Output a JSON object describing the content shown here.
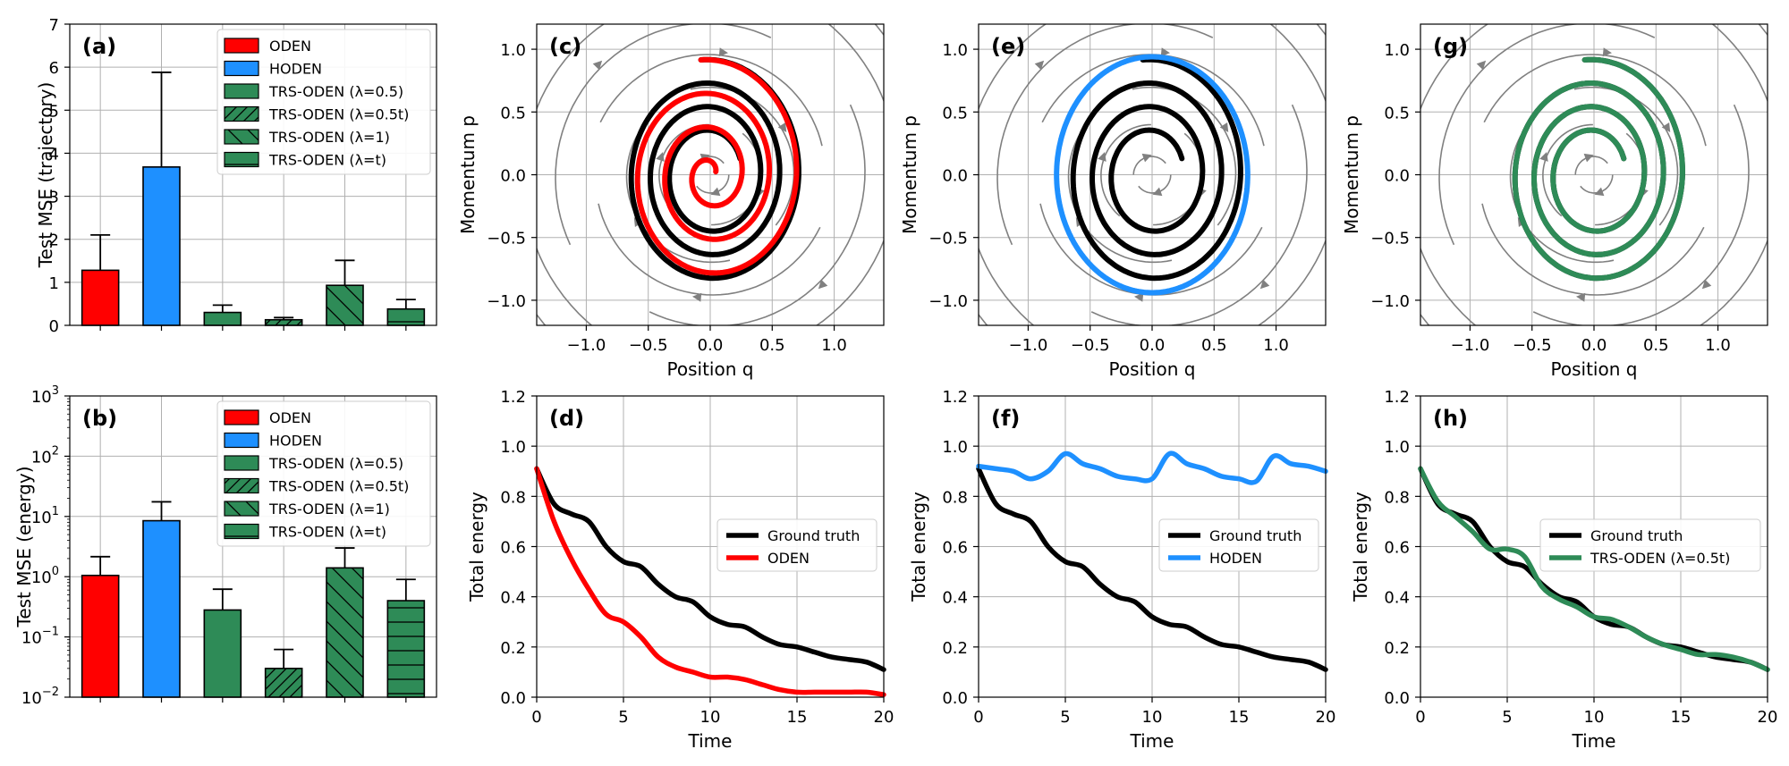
{
  "chart_data": [
    {
      "id": "a",
      "type": "bar",
      "panel_label": "(a)",
      "ylabel": "Test MSE (trajectory)",
      "yscale": "linear",
      "ylim": [
        0,
        7
      ],
      "yticks": [
        0,
        1,
        2,
        3,
        4,
        5,
        6,
        7
      ],
      "ytick_labels": [
        "0",
        "1",
        "2",
        "3",
        "4",
        "5",
        "6",
        "7"
      ],
      "categories": [
        "ODEN",
        "HODEN",
        "TRS-ODEN (λ=0.5)",
        "TRS-ODEN (λ=0.5t)",
        "TRS-ODEN (λ=1)",
        "TRS-ODEN (λ=t)"
      ],
      "values": [
        1.28,
        3.68,
        0.3,
        0.13,
        0.93,
        0.38
      ],
      "errors": [
        0.82,
        2.2,
        0.17,
        0.05,
        0.58,
        0.22
      ],
      "legend_position": "top-right"
    },
    {
      "id": "b",
      "type": "bar",
      "panel_label": "(b)",
      "ylabel": "Test MSE (energy)",
      "yscale": "log",
      "ylim": [
        0.01,
        1000
      ],
      "ytick_labels": [
        "10",
        "10",
        "10",
        "10",
        "10",
        "10"
      ],
      "ytick_exponents": [
        "−2",
        "−1",
        "0",
        "1",
        "2",
        "3"
      ],
      "categories": [
        "ODEN",
        "HODEN",
        "TRS-ODEN (λ=0.5)",
        "TRS-ODEN (λ=0.5t)",
        "TRS-ODEN (λ=1)",
        "TRS-ODEN (λ=t)"
      ],
      "values": [
        1.05,
        8.5,
        0.28,
        0.03,
        1.4,
        0.4
      ],
      "errors": [
        1.1,
        9.0,
        0.34,
        0.032,
        1.6,
        0.5
      ],
      "legend_position": "top-right"
    },
    {
      "id": "c",
      "type": "line",
      "panel_label": "(c)",
      "xlabel": "Position q",
      "ylabel": "Momentum p",
      "xlim": [
        -1.4,
        1.4
      ],
      "ylim": [
        -1.2,
        1.2
      ],
      "xtick_labels": [
        "−1.0",
        "−0.5",
        "0.0",
        "0.5",
        "1.0"
      ],
      "ytick_labels": [
        "−1.0",
        "−0.5",
        "0.0",
        "0.5",
        "1.0"
      ],
      "series": [
        {
          "name": "Ground truth",
          "color": "#000000",
          "r_start": 0.92,
          "r_end": 0.32,
          "turns": 3.2
        },
        {
          "name": "ODEN",
          "color": "#ff0000",
          "r_start": 0.92,
          "r_end": 0.06,
          "turns": 3.2
        }
      ]
    },
    {
      "id": "e",
      "type": "line",
      "panel_label": "(e)",
      "xlabel": "Position q",
      "ylabel": "Momentum p",
      "xlim": [
        -1.4,
        1.4
      ],
      "ylim": [
        -1.2,
        1.2
      ],
      "xtick_labels": [
        "−1.0",
        "−0.5",
        "0.0",
        "0.5",
        "1.0"
      ],
      "ytick_labels": [
        "−1.0",
        "−0.5",
        "0.0",
        "0.5",
        "1.0"
      ],
      "series": [
        {
          "name": "Ground truth",
          "color": "#000000",
          "r_start": 0.92,
          "r_end": 0.32,
          "turns": 3.2
        },
        {
          "name": "HODEN",
          "color": "#1e90ff",
          "r_start": 0.94,
          "r_end": 0.94,
          "turns": 1.0
        }
      ]
    },
    {
      "id": "g",
      "type": "line",
      "panel_label": "(g)",
      "xlabel": "Position q",
      "ylabel": "Momentum p",
      "xlim": [
        -1.4,
        1.4
      ],
      "ylim": [
        -1.2,
        1.2
      ],
      "xtick_labels": [
        "−1.0",
        "−0.5",
        "0.0",
        "0.5",
        "1.0"
      ],
      "ytick_labels": [
        "−1.0",
        "−0.5",
        "0.0",
        "0.5",
        "1.0"
      ],
      "series": [
        {
          "name": "Ground truth",
          "color": "#000000",
          "r_start": 0.92,
          "r_end": 0.32,
          "turns": 3.2
        },
        {
          "name": "TRS-ODEN (λ=0.5t)",
          "color": "#2e8b57",
          "r_start": 0.92,
          "r_end": 0.32,
          "turns": 3.2
        }
      ]
    },
    {
      "id": "d",
      "type": "line",
      "panel_label": "(d)",
      "xlabel": "Time",
      "ylabel": "Total energy",
      "xlim": [
        0,
        20
      ],
      "ylim": [
        0,
        1.2
      ],
      "xtick_labels": [
        "0",
        "5",
        "10",
        "15",
        "20"
      ],
      "ytick_labels": [
        "0.0",
        "0.2",
        "0.4",
        "0.6",
        "0.8",
        "1.0",
        "1.2"
      ],
      "legend_position": "center-right",
      "series": [
        {
          "name": "Ground truth",
          "color": "#000000",
          "x": [
            0,
            1,
            2,
            3,
            4,
            5,
            6,
            7,
            8,
            9,
            10,
            11,
            12,
            13,
            14,
            15,
            16,
            17,
            18,
            19,
            20
          ],
          "y": [
            0.91,
            0.77,
            0.73,
            0.7,
            0.6,
            0.54,
            0.52,
            0.45,
            0.4,
            0.38,
            0.32,
            0.29,
            0.28,
            0.24,
            0.21,
            0.2,
            0.18,
            0.16,
            0.15,
            0.14,
            0.11
          ]
        },
        {
          "name": "ODEN",
          "color": "#ff0000",
          "x": [
            0,
            1,
            2,
            3,
            4,
            5,
            6,
            7,
            8,
            9,
            10,
            11,
            12,
            13,
            14,
            15,
            16,
            17,
            18,
            19,
            20
          ],
          "y": [
            0.91,
            0.7,
            0.55,
            0.43,
            0.33,
            0.3,
            0.24,
            0.16,
            0.12,
            0.1,
            0.08,
            0.08,
            0.07,
            0.05,
            0.03,
            0.02,
            0.02,
            0.02,
            0.02,
            0.02,
            0.01
          ]
        }
      ]
    },
    {
      "id": "f",
      "type": "line",
      "panel_label": "(f)",
      "xlabel": "Time",
      "ylabel": "Total energy",
      "xlim": [
        0,
        20
      ],
      "ylim": [
        0,
        1.2
      ],
      "xtick_labels": [
        "0",
        "5",
        "10",
        "15",
        "20"
      ],
      "ytick_labels": [
        "0.0",
        "0.2",
        "0.4",
        "0.6",
        "0.8",
        "1.0",
        "1.2"
      ],
      "legend_position": "center-right",
      "series": [
        {
          "name": "Ground truth",
          "color": "#000000",
          "x": [
            0,
            1,
            2,
            3,
            4,
            5,
            6,
            7,
            8,
            9,
            10,
            11,
            12,
            13,
            14,
            15,
            16,
            17,
            18,
            19,
            20
          ],
          "y": [
            0.91,
            0.77,
            0.73,
            0.7,
            0.6,
            0.54,
            0.52,
            0.45,
            0.4,
            0.38,
            0.32,
            0.29,
            0.28,
            0.24,
            0.21,
            0.2,
            0.18,
            0.16,
            0.15,
            0.14,
            0.11
          ]
        },
        {
          "name": "HODEN",
          "color": "#1e90ff",
          "x": [
            0,
            1,
            2,
            3,
            4,
            5,
            6,
            7,
            8,
            9,
            10,
            11,
            12,
            13,
            14,
            15,
            16,
            17,
            18,
            19,
            20
          ],
          "y": [
            0.92,
            0.91,
            0.9,
            0.87,
            0.9,
            0.97,
            0.93,
            0.91,
            0.88,
            0.87,
            0.87,
            0.97,
            0.93,
            0.91,
            0.88,
            0.87,
            0.86,
            0.96,
            0.93,
            0.92,
            0.9
          ]
        }
      ]
    },
    {
      "id": "h",
      "type": "line",
      "panel_label": "(h)",
      "xlabel": "Time",
      "ylabel": "Total energy",
      "xlim": [
        0,
        20
      ],
      "ylim": [
        0,
        1.2
      ],
      "xtick_labels": [
        "0",
        "5",
        "10",
        "15",
        "20"
      ],
      "ytick_labels": [
        "0.0",
        "0.2",
        "0.4",
        "0.6",
        "0.8",
        "1.0",
        "1.2"
      ],
      "legend_position": "top-right",
      "series": [
        {
          "name": "Ground truth",
          "color": "#000000",
          "x": [
            0,
            1,
            2,
            3,
            4,
            5,
            6,
            7,
            8,
            9,
            10,
            11,
            12,
            13,
            14,
            15,
            16,
            17,
            18,
            19,
            20
          ],
          "y": [
            0.91,
            0.77,
            0.73,
            0.7,
            0.6,
            0.54,
            0.52,
            0.45,
            0.4,
            0.38,
            0.32,
            0.29,
            0.28,
            0.24,
            0.21,
            0.2,
            0.18,
            0.16,
            0.15,
            0.14,
            0.11
          ]
        },
        {
          "name": "TRS-ODEN (λ=0.5t)",
          "color": "#2e8b57",
          "x": [
            0,
            1,
            2,
            3,
            4,
            5,
            6,
            7,
            8,
            9,
            10,
            11,
            12,
            13,
            14,
            15,
            16,
            17,
            18,
            19,
            20
          ],
          "y": [
            0.91,
            0.78,
            0.72,
            0.66,
            0.59,
            0.59,
            0.56,
            0.44,
            0.39,
            0.36,
            0.32,
            0.31,
            0.28,
            0.24,
            0.21,
            0.19,
            0.17,
            0.17,
            0.16,
            0.14,
            0.11
          ]
        }
      ]
    }
  ],
  "legend_bars": {
    "items": [
      "ODEN",
      "HODEN",
      "TRS-ODEN (λ=0.5)",
      "TRS-ODEN (λ=0.5t)",
      "TRS-ODEN (λ=1)",
      "TRS-ODEN (λ=t)"
    ],
    "colors": [
      "#ff0000",
      "#1e90ff",
      "#2e8b57",
      "#2e8b57",
      "#2e8b57",
      "#2e8b57"
    ],
    "hatches": [
      "none",
      "none",
      "none",
      "slash",
      "backslash",
      "horizontal"
    ]
  },
  "colors": {
    "oden": "#ff0000",
    "hoden": "#1e90ff",
    "trs": "#2e8b57",
    "truth": "#000000",
    "grid": "#b0b0b0",
    "stream": "#808080"
  }
}
